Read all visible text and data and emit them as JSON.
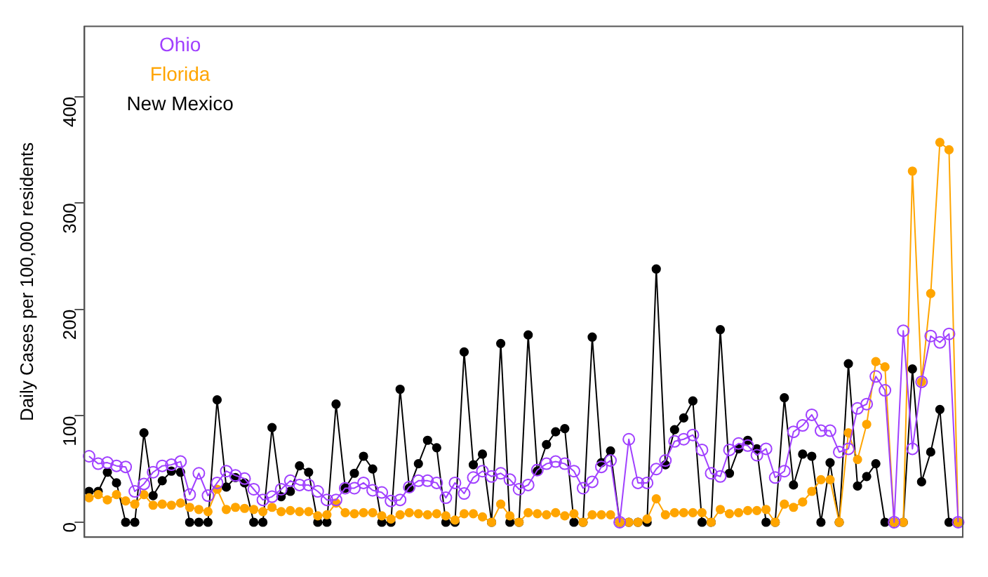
{
  "chart_data": {
    "type": "line",
    "ylabel": "Daily Cases per 100,000 residents",
    "categories": [
      null,
      null,
      null,
      null,
      null,
      null,
      null,
      null,
      null,
      null,
      null,
      null,
      null,
      null,
      null,
      null,
      null,
      null,
      null,
      null,
      null,
      null,
      null,
      null,
      null,
      null,
      null,
      null,
      null,
      null,
      null,
      null,
      null,
      null,
      null,
      null,
      null,
      null,
      null,
      null,
      null,
      null,
      null,
      null,
      null,
      null,
      null,
      null,
      null,
      null,
      null,
      null,
      null,
      null,
      null,
      null,
      null,
      null,
      null,
      null,
      null,
      null,
      null,
      null,
      null,
      null,
      null,
      null,
      null,
      null,
      null,
      null,
      null,
      null,
      null,
      null,
      null,
      null,
      null,
      null,
      null,
      null,
      null,
      null,
      null,
      null,
      null,
      null,
      null,
      null,
      null,
      null,
      null,
      null,
      null,
      null
    ],
    "ylim": [
      -14,
      466
    ],
    "yticks": [
      0,
      100,
      200,
      300,
      400
    ],
    "grid": false,
    "legend": "top left",
    "marker": "circle",
    "line_style": "solid",
    "series": [
      {
        "name": "Ohio",
        "color": "#a040ff",
        "values": [
          62,
          55,
          56,
          53,
          52,
          29,
          36,
          47,
          53,
          54,
          57,
          26,
          46,
          25,
          37,
          48,
          44,
          41,
          31,
          21,
          24,
          31,
          39,
          35,
          35,
          29,
          21,
          21,
          32,
          32,
          37,
          30,
          28,
          20,
          21,
          33,
          39,
          39,
          37,
          23,
          37,
          27,
          42,
          48,
          43,
          46,
          40,
          31,
          35,
          49,
          55,
          57,
          55,
          48,
          32,
          38,
          52,
          58,
          0,
          78,
          37,
          37,
          50,
          58,
          76,
          78,
          82,
          68,
          46,
          43,
          68,
          74,
          72,
          63,
          69,
          42,
          48,
          85,
          91,
          101,
          86,
          86,
          66,
          69,
          107,
          111,
          137,
          124,
          0,
          180,
          69,
          132,
          175,
          169,
          177,
          0
        ]
      },
      {
        "name": "Florida",
        "color": "#ffa500",
        "values": [
          23,
          26,
          21,
          26,
          20,
          17,
          26,
          16,
          17,
          16,
          18,
          14,
          12,
          10,
          31,
          12,
          14,
          13,
          12,
          10,
          14,
          10,
          11,
          10,
          10,
          6,
          7,
          18,
          9,
          8,
          9,
          9,
          6,
          3,
          7,
          9,
          8,
          7,
          8,
          6,
          2,
          8,
          8,
          5,
          0,
          17,
          6,
          0,
          9,
          8,
          7,
          9,
          6,
          8,
          0,
          7,
          7,
          7,
          0,
          0,
          0,
          3,
          22,
          7,
          9,
          9,
          9,
          9,
          0,
          12,
          8,
          9,
          11,
          11,
          12,
          0,
          17,
          14,
          19,
          29,
          40,
          40,
          0,
          84,
          59,
          92,
          151,
          146,
          0,
          0,
          330,
          132,
          215,
          357,
          350,
          0
        ]
      },
      {
        "name": "New Mexico",
        "color": "#000000",
        "values": [
          29,
          29,
          47,
          37,
          0,
          0,
          84,
          25,
          39,
          48,
          47,
          0,
          0,
          0,
          115,
          33,
          42,
          37,
          0,
          0,
          89,
          24,
          29,
          53,
          47,
          0,
          0,
          111,
          32,
          46,
          62,
          50,
          0,
          0,
          125,
          32,
          55,
          77,
          70,
          0,
          0,
          160,
          54,
          64,
          0,
          168,
          0,
          0,
          176,
          48,
          73,
          85,
          88,
          0,
          0,
          174,
          56,
          67,
          0,
          0,
          0,
          0,
          238,
          54,
          87,
          98,
          114,
          0,
          0,
          181,
          46,
          69,
          77,
          69,
          0,
          0,
          117,
          35,
          64,
          62,
          0,
          56,
          0,
          149,
          34,
          43,
          55,
          0,
          0,
          0,
          144,
          38,
          66,
          106,
          0,
          0
        ]
      }
    ]
  }
}
